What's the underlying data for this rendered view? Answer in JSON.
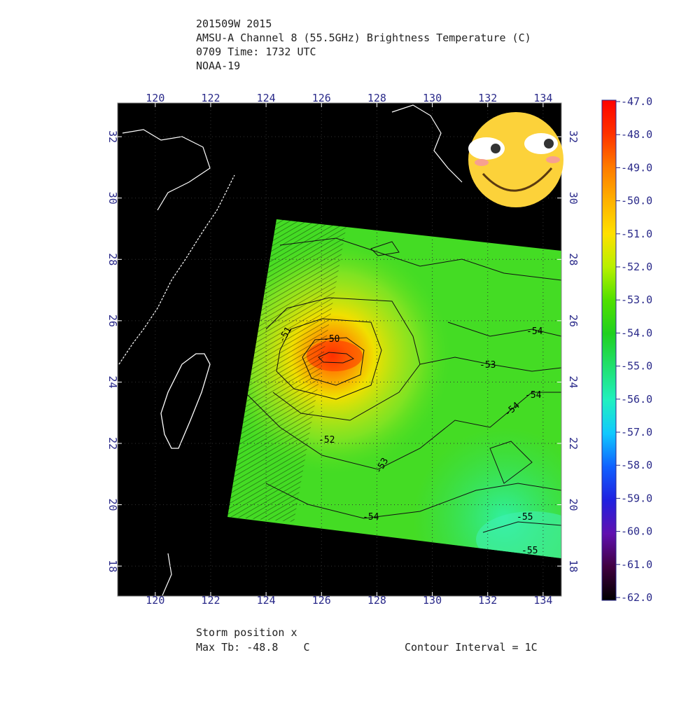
{
  "header": {
    "lines": [
      "201509W 2015",
      "AMSU-A Channel 8 (55.5GHz) Brightness Temperature (C)",
      "0709 Time: 1732 UTC",
      "NOAA-19"
    ]
  },
  "map": {
    "lonlim": [
      118.64,
      134.66
    ],
    "latlim": [
      17.02,
      33.1
    ],
    "lon_ticks": [
      120,
      122,
      124,
      126,
      128,
      130,
      132,
      134
    ],
    "lat_ticks": [
      18,
      20,
      22,
      24,
      26,
      28,
      30,
      32
    ],
    "contour_labels": [
      -50,
      -51,
      -52,
      -53,
      -53,
      -54,
      -54,
      -54,
      -54,
      -55,
      -55
    ]
  },
  "colorbar": {
    "lim": [
      -62,
      -47
    ],
    "ticks": [
      {
        "value": -47,
        "label": "-47.0"
      },
      {
        "value": -48,
        "label": "-48.0"
      },
      {
        "value": -49,
        "label": "-49.0"
      },
      {
        "value": -50,
        "label": "-50.0"
      },
      {
        "value": -51,
        "label": "-51.0"
      },
      {
        "value": -52,
        "label": "-52.0"
      },
      {
        "value": -53,
        "label": "-53.0"
      },
      {
        "value": -54,
        "label": "-54.0"
      },
      {
        "value": -55,
        "label": "-55.0"
      },
      {
        "value": -56,
        "label": "-56.0"
      },
      {
        "value": -57,
        "label": "-57.0"
      },
      {
        "value": -58,
        "label": "-58.0"
      },
      {
        "value": -59,
        "label": "-59.0"
      },
      {
        "value": -60,
        "label": "-60.0"
      },
      {
        "value": -61,
        "label": "-61.0"
      },
      {
        "value": -62,
        "label": "-62.0"
      }
    ],
    "colors": [
      "#ff0000",
      "#ff3000",
      "#ff7a00",
      "#ffb000",
      "#ffe000",
      "#b8f000",
      "#50e000",
      "#20d020",
      "#20e070",
      "#20f0c0",
      "#10c8ff",
      "#1060ff",
      "#2020e0",
      "#6010b0",
      "#400040",
      "#000000"
    ]
  },
  "footer": {
    "storm_position": "Storm position x",
    "max_tb": "Max Tb: -48.8    C",
    "contour_interval": "Contour Interval = 1C"
  }
}
